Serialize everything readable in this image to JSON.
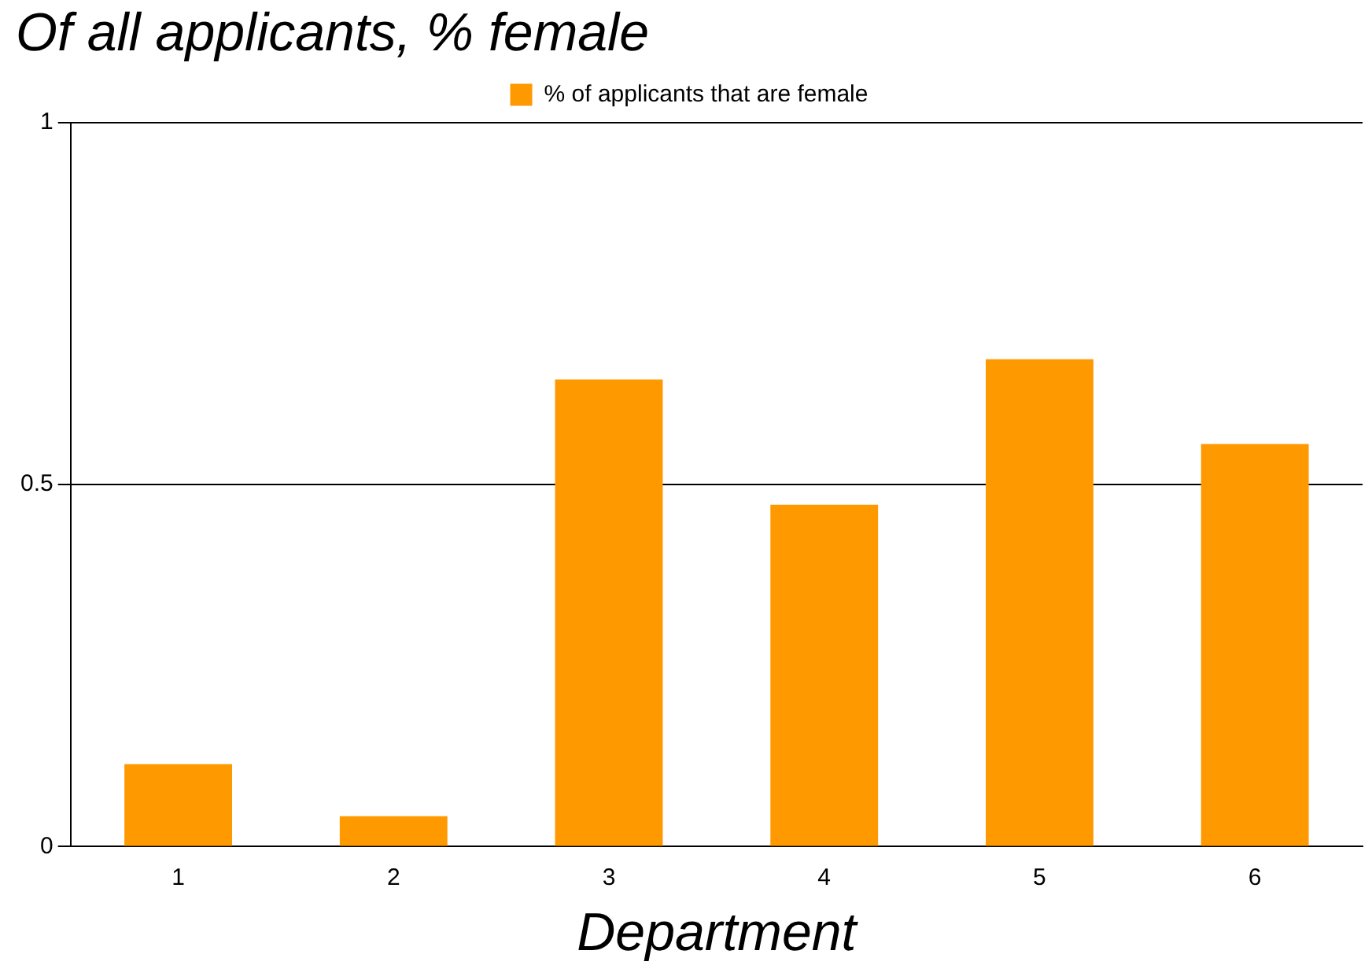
{
  "chart_data": {
    "type": "bar",
    "title": "Of all applicants, % female",
    "xlabel": "Department",
    "categories": [
      "1",
      "2",
      "3",
      "4",
      "5",
      "6"
    ],
    "series": [
      {
        "name": "% of applicants that are female",
        "color": "#ff9900",
        "values": [
          0.114,
          0.042,
          0.645,
          0.472,
          0.673,
          0.556
        ]
      }
    ],
    "ylim": [
      0,
      1
    ],
    "yticks": [
      0,
      0.5,
      1
    ],
    "grid": "y",
    "legend": "top"
  }
}
